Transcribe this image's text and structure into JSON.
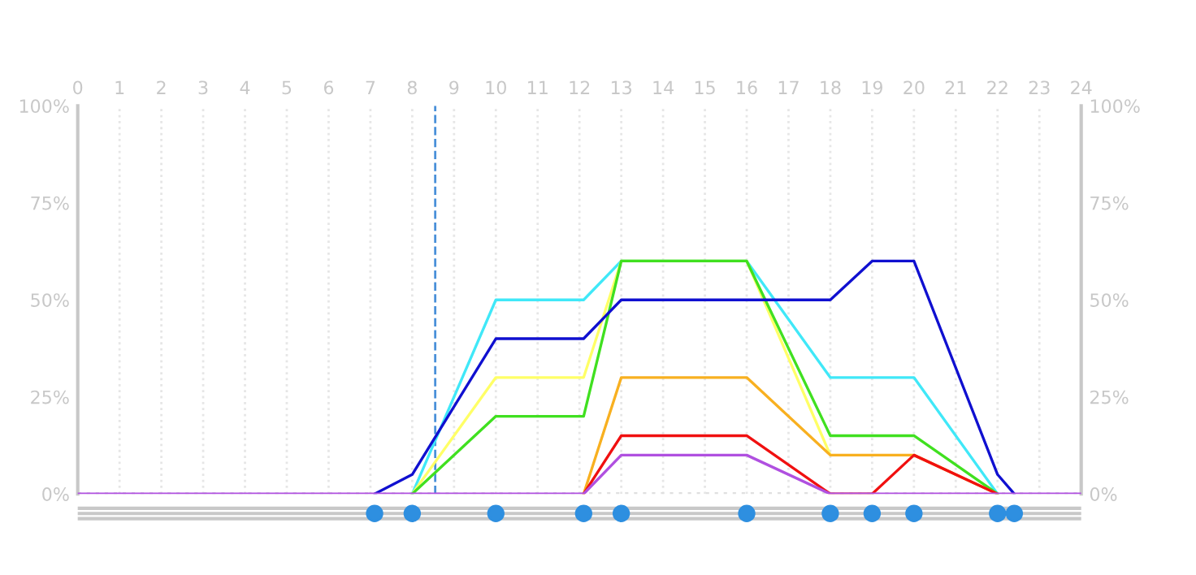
{
  "chart_data": {
    "type": "line",
    "x": [
      0,
      7.1,
      8,
      10,
      12.1,
      13,
      16,
      18,
      19,
      20,
      22,
      22.4,
      24
    ],
    "series": [
      {
        "color": "#40e8f8",
        "values": [
          null,
          null,
          0,
          50,
          50,
          60,
          60,
          30,
          30,
          30,
          0,
          null,
          null
        ]
      },
      {
        "color": "#ffff66",
        "values": [
          null,
          null,
          0,
          30,
          30,
          60,
          60,
          10,
          null,
          null,
          null,
          null,
          null
        ]
      },
      {
        "color": "#40e020",
        "values": [
          null,
          null,
          0,
          20,
          20,
          60,
          60,
          15,
          15,
          15,
          0,
          null,
          null
        ]
      },
      {
        "color": "#1010d0",
        "values": [
          null,
          0,
          5,
          40,
          40,
          50,
          50,
          50,
          60,
          60,
          5,
          0,
          null
        ]
      },
      {
        "color": "#f8b020",
        "values": [
          null,
          null,
          null,
          null,
          0,
          30,
          30,
          10,
          10,
          10,
          0,
          null,
          null
        ]
      },
      {
        "color": "#f01010",
        "values": [
          null,
          null,
          null,
          null,
          0,
          15,
          15,
          0,
          0,
          10,
          0,
          null,
          null
        ]
      },
      {
        "color": "#b050e0",
        "values": [
          0,
          0,
          0,
          0,
          0,
          10,
          10,
          0,
          0,
          0,
          0,
          0,
          0
        ]
      }
    ],
    "xlim": [
      0,
      24
    ],
    "xticks": [
      0,
      1,
      2,
      3,
      4,
      5,
      6,
      7,
      8,
      9,
      10,
      11,
      12,
      13,
      14,
      15,
      16,
      17,
      18,
      19,
      20,
      21,
      22,
      23,
      24
    ],
    "ylim": [
      0,
      100
    ],
    "yticks": [
      {
        "value": 0,
        "label": "0%"
      },
      {
        "value": 25,
        "label": "25%"
      },
      {
        "value": 50,
        "label": "50%"
      },
      {
        "value": 75,
        "label": "75%"
      },
      {
        "value": 100,
        "label": "100%"
      }
    ],
    "y2lim": [
      0,
      100
    ],
    "y2ticks": [
      {
        "value": 0,
        "label": "0%"
      },
      {
        "value": 25,
        "label": "25%"
      },
      {
        "value": 50,
        "label": "50%"
      },
      {
        "value": 75,
        "label": "75%"
      },
      {
        "value": 100,
        "label": "100%"
      }
    ],
    "ref_lines": [
      {
        "axis": "x",
        "value": 8.55,
        "color": "#4a90d9",
        "line_style": "dashed"
      }
    ],
    "grid": "x",
    "marker": "none",
    "line_style": "solid"
  }
}
